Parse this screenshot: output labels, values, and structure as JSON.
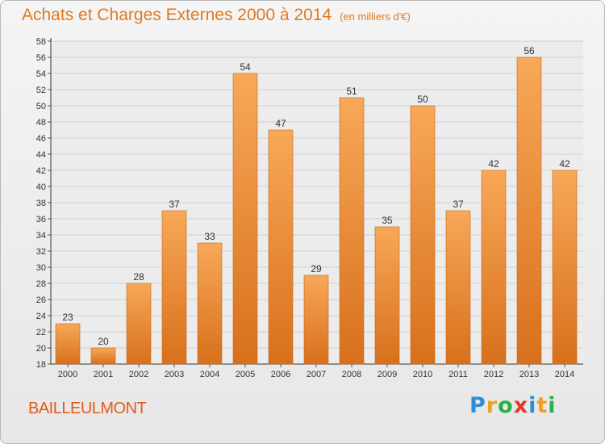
{
  "header": {
    "title": "Achats et Charges Externes 2000 à 2014",
    "subtitle": "(en milliers d'€)"
  },
  "footer": {
    "town": "BAILLEULMONT",
    "logo": {
      "letters": [
        "P",
        "r",
        "o",
        "x",
        "i",
        "t",
        "i"
      ],
      "colors": [
        "#2a8fd6",
        "#f0a020",
        "#2ab04a",
        "#e8382a",
        "#2a8fd6",
        "#f0a020",
        "#2ab04a"
      ]
    }
  },
  "chart_data": {
    "type": "bar",
    "categories": [
      "2000",
      "2001",
      "2002",
      "2003",
      "2004",
      "2005",
      "2006",
      "2007",
      "2008",
      "2009",
      "2010",
      "2011",
      "2012",
      "2013",
      "2014"
    ],
    "values": [
      23,
      20,
      28,
      37,
      33,
      54,
      47,
      29,
      51,
      35,
      50,
      37,
      42,
      56,
      42
    ],
    "ylim": [
      18,
      58
    ],
    "ytick_step": 2,
    "grid": true,
    "bar_color_top": "#f7a858",
    "bar_color_bottom": "#d8701c"
  }
}
